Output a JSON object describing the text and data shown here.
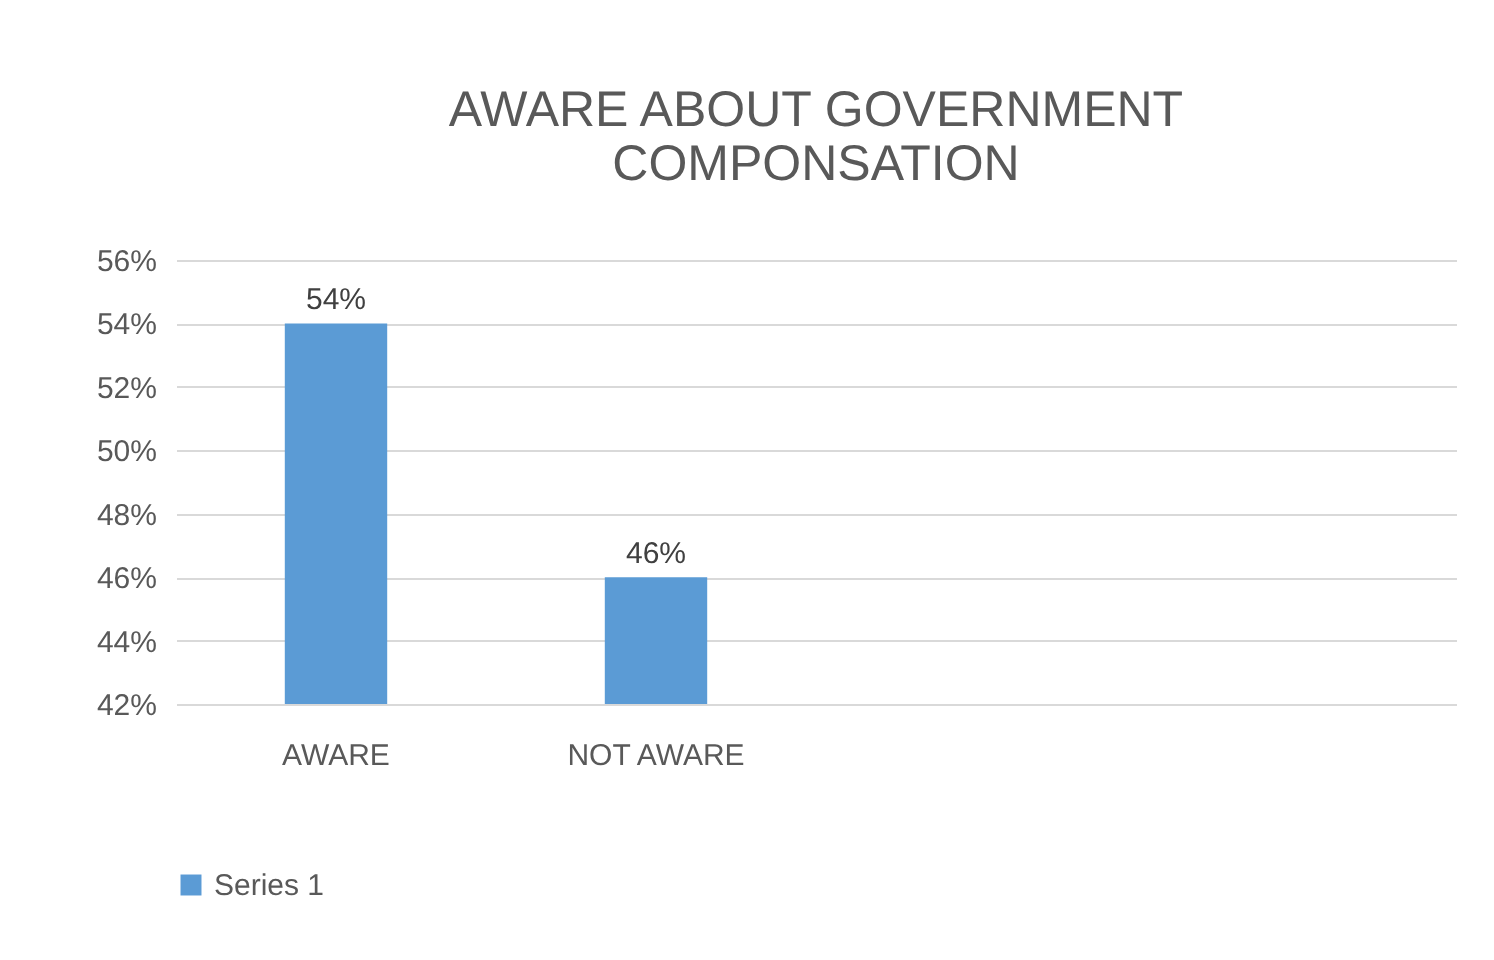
{
  "chart_data": {
    "type": "bar",
    "title": "AWARE ABOUT GOVERNMENT\nCOMPONSATION",
    "categories": [
      "AWARE",
      "NOT AWARE",
      null,
      null
    ],
    "series": [
      {
        "name": "Series 1",
        "color": "#5b9bd5",
        "values": [
          54,
          46,
          null,
          null
        ],
        "value_labels": [
          "54%",
          "46%",
          null,
          null
        ]
      }
    ],
    "ylim": [
      42,
      56
    ],
    "yticks": [
      {
        "value": 42,
        "label": "42%"
      },
      {
        "value": 44,
        "label": "44%"
      },
      {
        "value": 46,
        "label": "46%"
      },
      {
        "value": 48,
        "label": "48%"
      },
      {
        "value": 50,
        "label": "50%"
      },
      {
        "value": 52,
        "label": "52%"
      },
      {
        "value": 54,
        "label": "54%"
      },
      {
        "value": 56,
        "label": "56%"
      }
    ],
    "grid": "y",
    "legend": "bottom"
  }
}
